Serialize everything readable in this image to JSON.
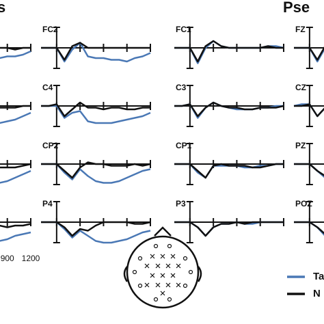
{
  "group_titles": [
    "s",
    "Pse"
  ],
  "legend": {
    "items": [
      {
        "name": "Ta",
        "color": "#4a78b5"
      },
      {
        "name": "N",
        "color": "#111111"
      }
    ]
  },
  "chart_data": [
    {
      "type": "line",
      "x": [
        -200,
        -100,
        0,
        100,
        200,
        300,
        400,
        500,
        600,
        700,
        800,
        900,
        1000,
        1100,
        1200
      ],
      "xlim": [
        -200,
        1200
      ],
      "ylim": [
        -12,
        12
      ],
      "xticks": [
        0,
        300,
        600,
        900,
        1200
      ],
      "series": [
        {
          "values": [
            0,
            0,
            0,
            -8,
            -1,
            3,
            -5,
            -6,
            -6,
            -7,
            -6,
            -5,
            -5,
            -4,
            -2
          ]
        },
        {
          "values": [
            0,
            0,
            0,
            -7,
            1,
            3,
            0,
            0,
            0,
            0,
            0,
            0,
            -1,
            0,
            0
          ]
        }
      ]
    },
    {
      "type": "line",
      "x": [
        -200,
        -100,
        0,
        100,
        200,
        300,
        400,
        500,
        600,
        700,
        800,
        900,
        1000,
        1100,
        1200
      ],
      "xlim": [
        -200,
        1200
      ],
      "ylim": [
        -12,
        12
      ],
      "xticks": [
        0,
        300,
        600,
        900,
        1200
      ],
      "series": [
        {
          "values": [
            0,
            0,
            0,
            -7,
            -4,
            -3,
            -9,
            -10,
            -10,
            -11,
            -10,
            -9,
            -8,
            -6,
            -4
          ]
        },
        {
          "values": [
            0,
            0,
            1,
            -6,
            -2,
            2,
            -1,
            -1,
            -2,
            -1,
            -1,
            -1,
            -1,
            0,
            0
          ]
        }
      ]
    },
    {
      "type": "line",
      "x": [
        -200,
        -100,
        0,
        100,
        200,
        300,
        400,
        500,
        600,
        700,
        800,
        900,
        1000,
        1100,
        1200
      ],
      "xlim": [
        -200,
        1200
      ],
      "ylim": [
        -12,
        12
      ],
      "xticks": [
        0,
        300,
        600,
        900,
        1200
      ],
      "series": [
        {
          "values": [
            0,
            0,
            0,
            -5,
            -9,
            -3,
            -7,
            -10,
            -11,
            -11,
            -11,
            -10,
            -8,
            -6,
            -4
          ]
        },
        {
          "values": [
            0,
            0,
            0,
            -4,
            -8,
            -2,
            0,
            0,
            -1,
            -1,
            -2,
            -2,
            -2,
            -1,
            0
          ]
        }
      ]
    },
    {
      "type": "line",
      "x": [
        -200,
        -100,
        0,
        100,
        200,
        300,
        400,
        500,
        600,
        700,
        800,
        900,
        1000,
        1100,
        1200
      ],
      "xlim": [
        -200,
        1200
      ],
      "ylim": [
        -12,
        12
      ],
      "xticks": [
        0,
        300,
        600,
        900,
        1200
      ],
      "xtick_labels": true,
      "series": [
        {
          "values": [
            0,
            0,
            0,
            -4,
            -9,
            -5,
            -8,
            -11,
            -12,
            -12,
            -11,
            -10,
            -8,
            -7,
            -6
          ]
        },
        {
          "values": [
            0,
            0,
            0,
            -3,
            -8,
            -4,
            -5,
            -3,
            -2,
            -1,
            -2,
            -3,
            -2,
            -2,
            -1
          ]
        }
      ]
    },
    {
      "type": "line",
      "title": "FC2",
      "x": [
        -200,
        -100,
        0,
        100,
        200,
        300,
        400,
        500,
        600,
        700,
        800,
        900,
        1000,
        1100,
        1200
      ],
      "xlim": [
        -200,
        1200
      ],
      "ylim": [
        -12,
        12
      ],
      "xticks": [
        0,
        300,
        600,
        900,
        1200
      ],
      "series": [
        {
          "values": [
            0,
            0,
            0,
            -8,
            -1,
            3,
            -5,
            -6,
            -6,
            -7,
            -7,
            -8,
            -6,
            -5,
            -3
          ]
        },
        {
          "values": [
            0,
            0,
            0,
            -7,
            1,
            3,
            0,
            0,
            0,
            0,
            0,
            0,
            0,
            0,
            0
          ]
        }
      ]
    },
    {
      "type": "line",
      "title": "C4",
      "x": [
        -200,
        -100,
        0,
        100,
        200,
        300,
        400,
        500,
        600,
        700,
        800,
        900,
        1000,
        1100,
        1200
      ],
      "xlim": [
        -200,
        1200
      ],
      "ylim": [
        -12,
        12
      ],
      "xticks": [
        0,
        300,
        600,
        900,
        1200
      ],
      "series": [
        {
          "values": [
            0,
            0,
            0,
            -7,
            -4,
            -3,
            -9,
            -10,
            -10,
            -10,
            -9,
            -8,
            -7,
            -6,
            -4
          ]
        },
        {
          "values": [
            0,
            0,
            1,
            -6,
            -2,
            2,
            -1,
            -1,
            -2,
            -1,
            -1,
            -2,
            -2,
            -1,
            -1
          ]
        }
      ]
    },
    {
      "type": "line",
      "title": "CP2",
      "x": [
        -200,
        -100,
        0,
        100,
        200,
        300,
        400,
        500,
        600,
        700,
        800,
        900,
        1000,
        1100,
        1200
      ],
      "xlim": [
        -200,
        1200
      ],
      "ylim": [
        -12,
        12
      ],
      "xticks": [
        0,
        300,
        600,
        900,
        1200
      ],
      "series": [
        {
          "values": [
            0,
            0,
            0,
            -5,
            -9,
            -3,
            -7,
            -10,
            -11,
            -11,
            -10,
            -8,
            -6,
            -4,
            -3
          ]
        },
        {
          "values": [
            0,
            0,
            0,
            -4,
            -8,
            -2,
            1,
            0,
            0,
            -1,
            -1,
            -1,
            0,
            -1,
            0
          ]
        }
      ]
    },
    {
      "type": "line",
      "title": "P4",
      "x": [
        -200,
        -100,
        0,
        100,
        200,
        300,
        400,
        500,
        600,
        700,
        800,
        900,
        1000,
        1100,
        1200
      ],
      "xlim": [
        -200,
        1200
      ],
      "ylim": [
        -12,
        12
      ],
      "xticks": [
        0,
        300,
        600,
        900,
        1200
      ],
      "series": [
        {
          "values": [
            0,
            0,
            0,
            -4,
            -9,
            -5,
            -8,
            -11,
            -12,
            -12,
            -11,
            -10,
            -8,
            -6,
            -5
          ]
        },
        {
          "values": [
            0,
            0,
            0,
            -3,
            -8,
            -4,
            -5,
            -2,
            0,
            0,
            0,
            0,
            -1,
            -1,
            0
          ]
        }
      ]
    },
    {
      "type": "line",
      "title": "FC1",
      "x": [
        -200,
        -100,
        0,
        100,
        200,
        300,
        400,
        500,
        600,
        700,
        800,
        900,
        1000,
        1100,
        1200
      ],
      "xlim": [
        -200,
        1200
      ],
      "ylim": [
        -12,
        12
      ],
      "xticks": [
        0,
        300,
        600,
        900,
        1200
      ],
      "series": [
        {
          "values": [
            0,
            0,
            0,
            -9,
            0,
            4,
            1,
            0,
            0,
            0,
            0,
            0,
            1,
            1,
            0
          ]
        },
        {
          "values": [
            0,
            0,
            0,
            -8,
            1,
            4,
            1,
            0,
            0,
            0,
            0,
            0,
            1,
            0,
            0
          ]
        }
      ]
    },
    {
      "type": "line",
      "title": "C3",
      "x": [
        -200,
        -100,
        0,
        100,
        200,
        300,
        400,
        500,
        600,
        700,
        800,
        900,
        1000,
        1100,
        1200
      ],
      "xlim": [
        -200,
        1200
      ],
      "ylim": [
        -12,
        12
      ],
      "xticks": [
        0,
        300,
        600,
        900,
        1200
      ],
      "series": [
        {
          "values": [
            0,
            0,
            1,
            -7,
            -1,
            2,
            0,
            -1,
            -2,
            -2,
            -2,
            -1,
            -1,
            0,
            0
          ]
        },
        {
          "values": [
            0,
            0,
            1,
            -6,
            -1,
            2,
            0,
            -1,
            -1,
            -2,
            -2,
            -1,
            -1,
            -1,
            0
          ]
        }
      ]
    },
    {
      "type": "line",
      "title": "CP1",
      "x": [
        -200,
        -100,
        0,
        100,
        200,
        300,
        400,
        500,
        600,
        700,
        800,
        900,
        1000,
        1100,
        1200
      ],
      "xlim": [
        -200,
        1200
      ],
      "ylim": [
        -12,
        12
      ],
      "xticks": [
        0,
        300,
        600,
        900,
        1200
      ],
      "series": [
        {
          "values": [
            0,
            0,
            0,
            -5,
            -8,
            -1,
            -1,
            -1,
            -1,
            -2,
            -2,
            -1,
            -1,
            0,
            0
          ]
        },
        {
          "values": [
            0,
            0,
            0,
            -4,
            -8,
            -1,
            0,
            -1,
            -1,
            -1,
            -2,
            -2,
            -1,
            0,
            0
          ]
        }
      ]
    },
    {
      "type": "line",
      "title": "P3",
      "x": [
        -200,
        -100,
        0,
        100,
        200,
        300,
        400,
        500,
        600,
        700,
        800,
        900,
        1000,
        1100,
        1200
      ],
      "xlim": [
        -200,
        1200
      ],
      "ylim": [
        -12,
        12
      ],
      "xticks": [
        0,
        300,
        600,
        900,
        1200
      ],
      "series": [
        {
          "values": [
            0,
            0,
            0,
            -3,
            -8,
            -3,
            -1,
            -1,
            0,
            -1,
            -1,
            0,
            0,
            0,
            0
          ]
        },
        {
          "values": [
            0,
            0,
            0,
            -3,
            -8,
            -3,
            -1,
            -1,
            0,
            -1,
            0,
            0,
            0,
            0,
            0
          ]
        }
      ]
    },
    {
      "type": "line",
      "title": "FZ",
      "x": [
        -200,
        -100,
        0,
        100,
        200,
        300,
        400,
        500,
        600,
        700,
        800,
        900,
        1000,
        1100,
        1200
      ],
      "xlim": [
        -200,
        1200
      ],
      "ylim": [
        -12,
        12
      ],
      "xticks": [
        0,
        300,
        600,
        900,
        1200
      ],
      "series": [
        {
          "values": [
            0,
            0,
            0,
            -8,
            0,
            3,
            1,
            0,
            0,
            0,
            0,
            0,
            0,
            0,
            0
          ]
        },
        {
          "values": [
            0,
            0,
            0,
            -7,
            1,
            3,
            1,
            0,
            0,
            0,
            0,
            0,
            0,
            0,
            0
          ]
        }
      ]
    },
    {
      "type": "line",
      "title": "CZ",
      "x": [
        -200,
        -100,
        0,
        100,
        200,
        300,
        400,
        500,
        600,
        700,
        800,
        900,
        1000,
        1100,
        1200
      ],
      "xlim": [
        -200,
        1200
      ],
      "ylim": [
        -12,
        12
      ],
      "xticks": [
        0,
        300,
        600,
        900,
        1200
      ],
      "series": [
        {
          "values": [
            0,
            1,
            1,
            -6,
            -1,
            2,
            0,
            -1,
            -1,
            -1,
            -1,
            -1,
            0,
            0,
            0
          ]
        },
        {
          "values": [
            0,
            0,
            1,
            -6,
            -1,
            2,
            0,
            -1,
            -1,
            -1,
            -1,
            -1,
            0,
            0,
            0
          ]
        }
      ]
    },
    {
      "type": "line",
      "title": "PZ",
      "x": [
        -200,
        -100,
        0,
        100,
        200,
        300,
        400,
        500,
        600,
        700,
        800,
        900,
        1000,
        1100,
        1200
      ],
      "xlim": [
        -200,
        1200
      ],
      "ylim": [
        -12,
        12
      ],
      "xticks": [
        0,
        300,
        600,
        900,
        1200
      ],
      "series": [
        {
          "values": [
            0,
            0,
            0,
            -4,
            -8,
            -2,
            -1,
            -1,
            -1,
            -1,
            -1,
            -1,
            0,
            0,
            0
          ]
        },
        {
          "values": [
            0,
            0,
            0,
            -4,
            -7,
            -2,
            0,
            -1,
            -1,
            -1,
            -1,
            -1,
            0,
            0,
            0
          ]
        }
      ]
    },
    {
      "type": "line",
      "title": "POZ",
      "x": [
        -200,
        -100,
        0,
        100,
        200,
        300,
        400,
        500,
        600,
        700,
        800,
        900,
        1000,
        1100,
        1200
      ],
      "xlim": [
        -200,
        1200
      ],
      "ylim": [
        -12,
        12
      ],
      "xticks": [
        0,
        300,
        600,
        900,
        1200
      ],
      "series": [
        {
          "values": [
            0,
            0,
            0,
            -3,
            -8,
            -3,
            -1,
            -1,
            0,
            -1,
            -1,
            0,
            0,
            0,
            0
          ]
        },
        {
          "values": [
            0,
            0,
            0,
            -3,
            -7,
            -3,
            -1,
            -1,
            0,
            0,
            0,
            0,
            0,
            0,
            0
          ]
        }
      ]
    }
  ]
}
